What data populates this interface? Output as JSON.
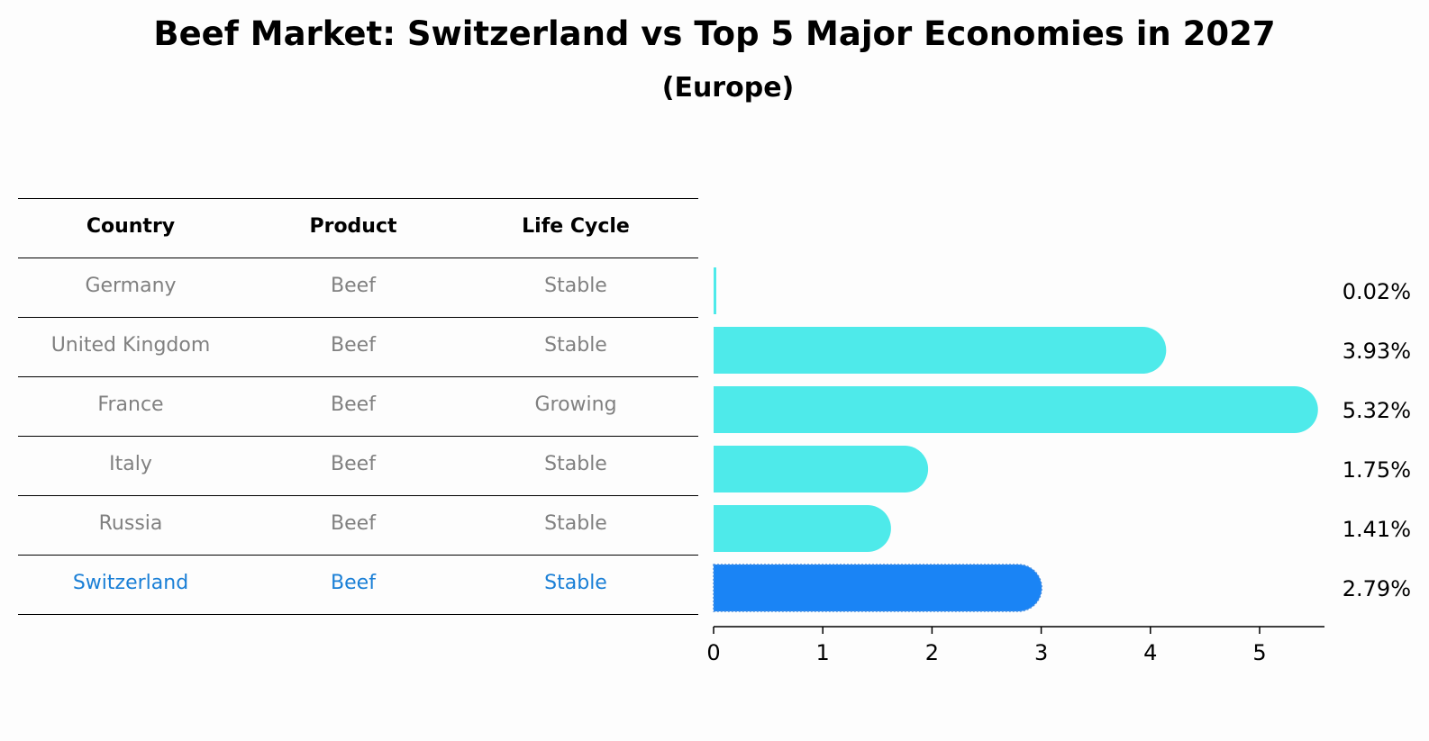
{
  "title": "Beef Market: Switzerland vs Top 5 Major Economies in 2027",
  "subtitle": "(Europe)",
  "table": {
    "headers": [
      "Country",
      "Product",
      "Life Cycle"
    ],
    "rows": [
      [
        "Germany",
        "Beef",
        "Stable"
      ],
      [
        "United Kingdom",
        "Beef",
        "Stable"
      ],
      [
        "France",
        "Beef",
        "Growing"
      ],
      [
        "Italy",
        "Beef",
        "Stable"
      ],
      [
        "Russia",
        "Beef",
        "Stable"
      ],
      [
        "Switzerland",
        "Beef",
        "Stable"
      ]
    ],
    "highlight_row": 5
  },
  "chart_data": {
    "type": "bar",
    "orientation": "horizontal",
    "categories": [
      "Germany",
      "United Kingdom",
      "France",
      "Italy",
      "Russia",
      "Switzerland"
    ],
    "values": [
      0.02,
      3.93,
      5.32,
      1.75,
      1.41,
      2.79
    ],
    "value_labels": [
      "0.02%",
      "3.93%",
      "5.32%",
      "1.75%",
      "1.41%",
      "2.79%"
    ],
    "xlim": [
      0,
      5.6
    ],
    "xticks": [
      "0",
      "1",
      "2",
      "3",
      "4",
      "5"
    ],
    "grid": false,
    "colors": {
      "default": "#4eeaea",
      "highlight": "#1a84f5"
    },
    "highlight_index": 5
  }
}
